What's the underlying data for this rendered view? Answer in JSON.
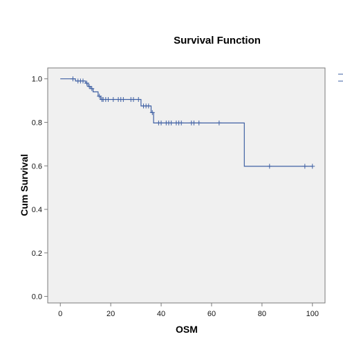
{
  "chart_data": {
    "type": "line",
    "title": "Survival Function",
    "xlabel": "OSM",
    "ylabel": "Cum Survival",
    "xlim": [
      -5,
      105
    ],
    "ylim": [
      -0.03,
      1.05
    ],
    "xticks": [
      0,
      20,
      40,
      60,
      80,
      100
    ],
    "yticks": [
      0.0,
      0.2,
      0.4,
      0.6,
      0.8,
      1.0
    ],
    "ytick_labels": [
      "0.0",
      "0.2",
      "0.4",
      "0.6",
      "0.8",
      "1.0"
    ],
    "grid": false,
    "legend_position": "right (clipped)",
    "colors": {
      "line": "#3e5fa3",
      "plot_bg": "#f0f0f0",
      "axis": "#7a7a7a"
    },
    "series": [
      {
        "step": [
          [
            0,
            1.0
          ],
          [
            6,
            1.0
          ],
          [
            6,
            0.99
          ],
          [
            10,
            0.99
          ],
          [
            10,
            0.98
          ],
          [
            11,
            0.98
          ],
          [
            11,
            0.965
          ],
          [
            12,
            0.965
          ],
          [
            12,
            0.955
          ],
          [
            13,
            0.955
          ],
          [
            13,
            0.94
          ],
          [
            15,
            0.94
          ],
          [
            15,
            0.92
          ],
          [
            16,
            0.92
          ],
          [
            16,
            0.905
          ],
          [
            32,
            0.905
          ],
          [
            32,
            0.875
          ],
          [
            36,
            0.875
          ],
          [
            36,
            0.845
          ],
          [
            37,
            0.845
          ],
          [
            37,
            0.797
          ],
          [
            73,
            0.797
          ],
          [
            73,
            0.598
          ],
          [
            100,
            0.598
          ]
        ],
        "censored": [
          [
            5,
            1.0
          ],
          [
            7,
            0.99
          ],
          [
            8,
            0.99
          ],
          [
            9,
            0.99
          ],
          [
            10.5,
            0.98
          ],
          [
            11.5,
            0.965
          ],
          [
            12.5,
            0.955
          ],
          [
            15.5,
            0.92
          ],
          [
            16.5,
            0.905
          ],
          [
            17,
            0.905
          ],
          [
            18,
            0.905
          ],
          [
            19,
            0.905
          ],
          [
            21,
            0.905
          ],
          [
            23,
            0.905
          ],
          [
            24,
            0.905
          ],
          [
            25,
            0.905
          ],
          [
            28,
            0.905
          ],
          [
            29,
            0.905
          ],
          [
            31,
            0.905
          ],
          [
            33,
            0.875
          ],
          [
            34,
            0.875
          ],
          [
            35,
            0.875
          ],
          [
            36.5,
            0.845
          ],
          [
            39,
            0.797
          ],
          [
            40,
            0.797
          ],
          [
            42,
            0.797
          ],
          [
            43,
            0.797
          ],
          [
            44,
            0.797
          ],
          [
            46,
            0.797
          ],
          [
            47,
            0.797
          ],
          [
            48,
            0.797
          ],
          [
            52,
            0.797
          ],
          [
            53,
            0.797
          ],
          [
            55,
            0.797
          ],
          [
            63,
            0.797
          ],
          [
            83,
            0.598
          ],
          [
            97,
            0.598
          ],
          [
            100,
            0.598
          ]
        ]
      }
    ]
  }
}
